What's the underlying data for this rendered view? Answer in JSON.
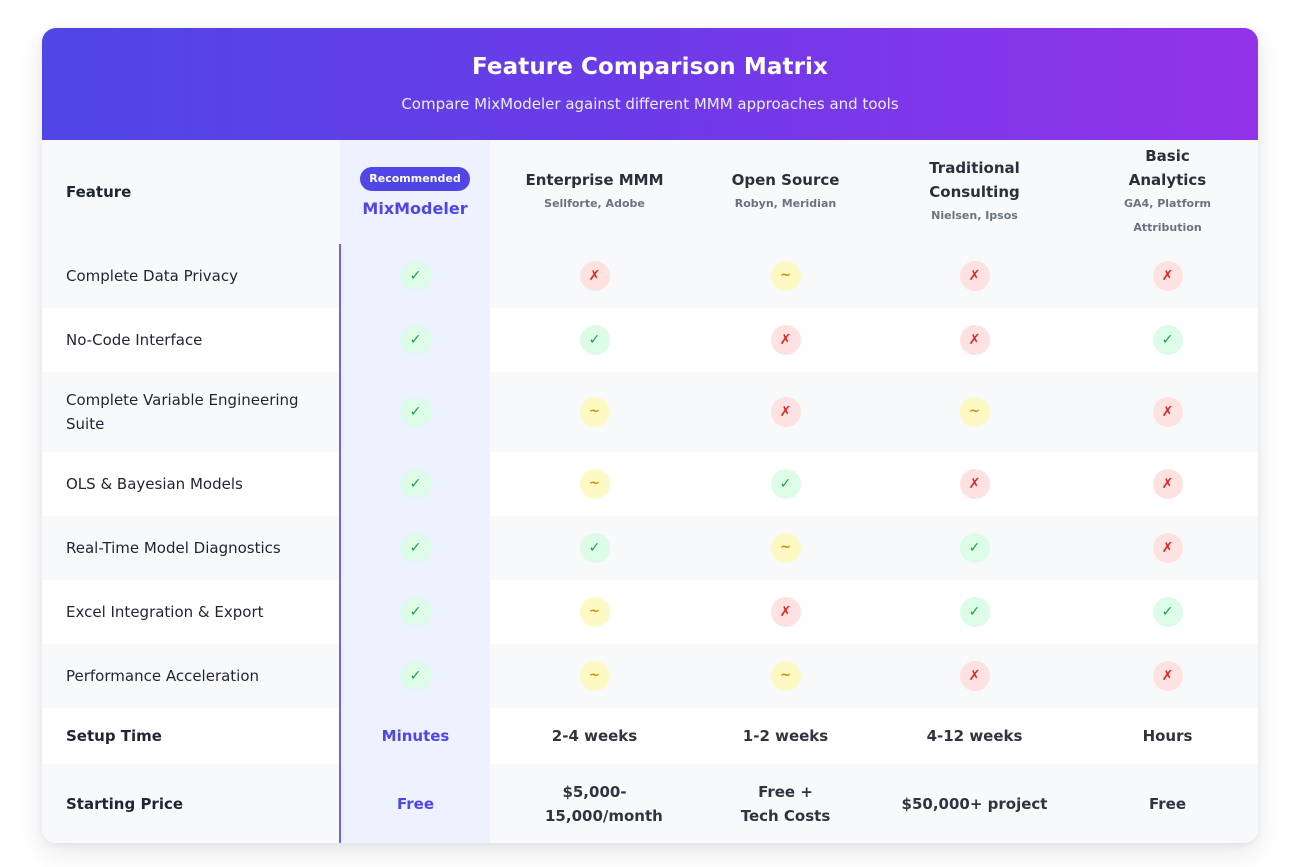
{
  "header": {
    "title": "Feature Comparison Matrix",
    "subtitle": "Compare MixModeler against different MMM approaches and tools"
  },
  "columns": {
    "feature_label": "Feature",
    "mixmodeler": {
      "badge": "Recommended",
      "name": "MixModeler"
    },
    "enterprise": {
      "name": "Enterprise MMM",
      "sub": "Sellforte, Adobe"
    },
    "open_source": {
      "name": "Open Source",
      "sub": "Robyn, Meridian"
    },
    "traditional": {
      "name": "Traditional Consulting",
      "sub": "Nielsen, Ipsos"
    },
    "basic": {
      "name": "Basic Analytics",
      "sub": "GA4, Platform Attribution"
    }
  },
  "symbols": {
    "yes": "✓",
    "no": "✗",
    "partial": "~"
  },
  "colors": {
    "accent": "#4f46e5",
    "gradient_end": "#9333ea",
    "yes": "#16a34a",
    "no": "#dc2626",
    "partial": "#ca8a04"
  },
  "features": [
    {
      "label": "Complete Data Privacy",
      "values": [
        "yes",
        "no",
        "partial",
        "no",
        "no"
      ]
    },
    {
      "label": "No-Code Interface",
      "values": [
        "yes",
        "yes",
        "no",
        "no",
        "yes"
      ]
    },
    {
      "label": "Complete Variable Engineering Suite",
      "values": [
        "yes",
        "partial",
        "no",
        "partial",
        "no"
      ]
    },
    {
      "label": "OLS & Bayesian Models",
      "values": [
        "yes",
        "partial",
        "yes",
        "no",
        "no"
      ]
    },
    {
      "label": "Real-Time Model Diagnostics",
      "values": [
        "yes",
        "yes",
        "partial",
        "yes",
        "no"
      ]
    },
    {
      "label": "Excel Integration & Export",
      "values": [
        "yes",
        "partial",
        "no",
        "yes",
        "yes"
      ]
    },
    {
      "label": "Performance Acceleration",
      "values": [
        "yes",
        "partial",
        "partial",
        "no",
        "no"
      ]
    }
  ],
  "setup_time": {
    "label": "Setup Time",
    "values": [
      "Minutes",
      "2-4 weeks",
      "1-2 weeks",
      "4-12 weeks",
      "Hours"
    ]
  },
  "starting_price": {
    "label": "Starting Price",
    "values": [
      "Free",
      "$5,000-15,000/month",
      "Free + Tech Costs",
      "$50,000+ project",
      "Free"
    ]
  }
}
